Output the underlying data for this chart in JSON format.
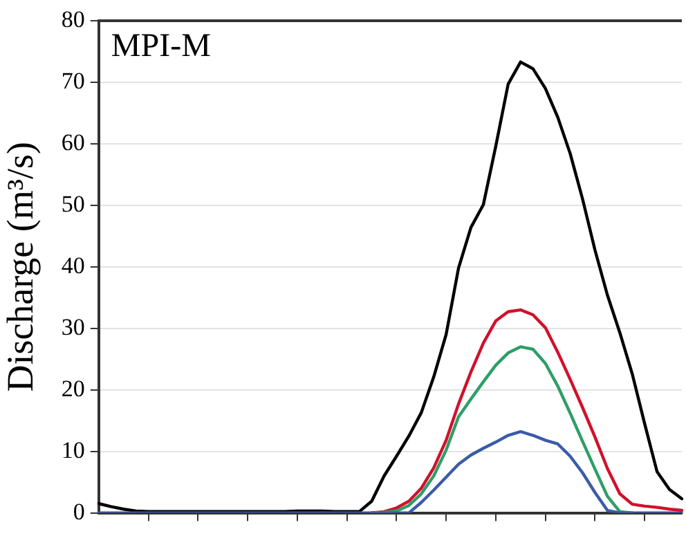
{
  "chart_data": {
    "type": "line",
    "title": "MPI-M",
    "ylabel": "Discharge (m³/s)",
    "ylim": [
      0,
      80
    ],
    "categories": [
      null,
      null,
      null,
      null,
      null,
      null,
      null,
      null,
      null,
      null,
      null,
      null,
      null,
      null,
      null,
      null,
      null,
      null,
      null,
      null,
      null,
      null,
      null,
      null,
      null,
      null,
      null,
      null,
      null,
      null,
      null,
      null,
      null,
      null,
      null,
      null,
      null,
      null,
      null,
      null,
      null,
      null,
      null,
      null,
      null,
      null,
      null,
      null
    ],
    "yticks": [
      0,
      10,
      20,
      30,
      40,
      50,
      60,
      70,
      80
    ],
    "grid": "y",
    "tick_labels": "y",
    "marker": "none",
    "series": [
      {
        "color": "#000000",
        "values": [
          1.5,
          1.0,
          0.6,
          0.3,
          0.2,
          0.2,
          0.2,
          0.2,
          0.2,
          0.2,
          0.2,
          0.2,
          0.2,
          0.2,
          0.2,
          0.2,
          0.3,
          0.3,
          0.3,
          0.2,
          0.2,
          0.2,
          1.9,
          6.0,
          9.2,
          12.5,
          16.3,
          22.1,
          29,
          39.8,
          46.4,
          50.1,
          59.6,
          69.7,
          73.3,
          72.2,
          69,
          64.3,
          58.4,
          51,
          42.7,
          35.4,
          29.3,
          22.6,
          14.5,
          6.7,
          3.8,
          2.3
        ]
      },
      {
        "color": "#d0112b",
        "values": [
          null,
          null,
          null,
          null,
          null,
          null,
          null,
          null,
          null,
          null,
          null,
          null,
          null,
          null,
          null,
          null,
          null,
          null,
          null,
          null,
          null,
          null,
          0,
          0.2,
          0.8,
          1.9,
          4.0,
          7.3,
          11.8,
          17.7,
          22.9,
          27.6,
          31.2,
          32.7,
          33.0,
          32.2,
          30.1,
          26.1,
          21.7,
          17.1,
          12.3,
          7.2,
          3.1,
          1.4,
          1.1,
          0.9,
          0.6,
          0.4
        ]
      },
      {
        "color": "#2e9e68",
        "values": [
          null,
          null,
          null,
          null,
          null,
          null,
          null,
          null,
          null,
          null,
          null,
          null,
          null,
          null,
          null,
          null,
          null,
          null,
          null,
          null,
          null,
          null,
          0,
          0.1,
          0.3,
          1.2,
          3.1,
          6.0,
          10.2,
          15.6,
          18.5,
          21.3,
          24.0,
          26.0,
          27.0,
          26.6,
          24.3,
          20.6,
          16.2,
          11.6,
          7.1,
          2.7,
          0.2,
          0,
          null,
          null,
          null,
          null
        ]
      },
      {
        "color": "#3a5ba8",
        "values": [
          0,
          0,
          0,
          0,
          0,
          0,
          0,
          0,
          0,
          0,
          0,
          0,
          0,
          0,
          0,
          0,
          0,
          0,
          0,
          0,
          0,
          0,
          0,
          0,
          0,
          0,
          1.7,
          3.7,
          5.8,
          7.9,
          9.4,
          10.5,
          11.5,
          12.6,
          13.2,
          12.6,
          11.8,
          11.2,
          9.2,
          6.5,
          3.3,
          0.4,
          0,
          0,
          0,
          0,
          0,
          0
        ]
      }
    ]
  }
}
